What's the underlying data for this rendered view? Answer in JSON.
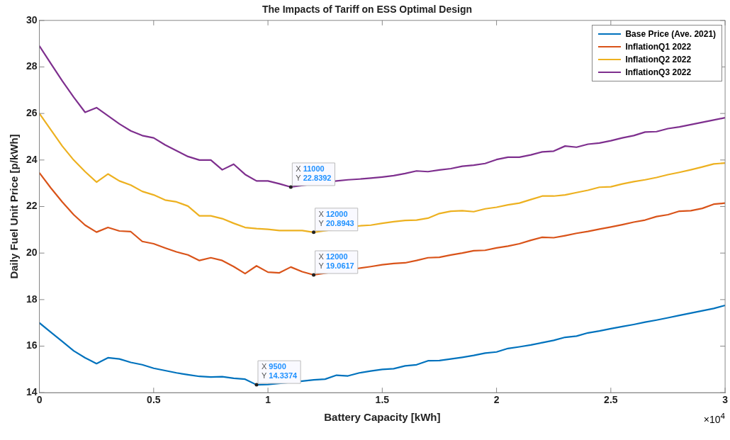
{
  "chart_data": {
    "type": "line",
    "title": "The Impacts of Tariff on ESS Optimal Design",
    "xlabel": "Battery Capacity [kWh]",
    "ylabel": "Daily Fuel Unit Price [p/kWh]",
    "x": [
      0,
      0.05,
      0.1,
      0.15,
      0.2,
      0.25,
      0.3,
      0.35,
      0.4,
      0.45,
      0.5,
      0.55,
      0.6,
      0.65,
      0.7,
      0.75,
      0.8,
      0.85,
      0.9,
      0.95,
      1,
      1.05,
      1.1,
      1.15,
      1.2,
      1.25,
      1.3,
      1.35,
      1.4,
      1.45,
      1.5,
      1.55,
      1.6,
      1.65,
      1.7,
      1.75,
      1.8,
      1.85,
      1.9,
      1.95,
      2,
      2.05,
      2.1,
      2.15,
      2.2,
      2.25,
      2.3,
      2.35,
      2.4,
      2.45,
      2.5,
      2.55,
      2.6,
      2.65,
      2.7,
      2.75,
      2.8,
      2.85,
      2.9,
      2.95,
      3
    ],
    "series": [
      {
        "name": "Base Price (Ave. 2021)",
        "color": "#0072bd",
        "values": [
          17.0,
          16.6,
          16.2,
          15.8,
          15.5,
          15.25,
          15.5,
          15.45,
          15.3,
          15.2,
          15.05,
          14.95,
          14.85,
          14.77,
          14.7,
          14.67,
          14.69,
          14.62,
          14.58,
          14.3374,
          14.35,
          null,
          null,
          14.5,
          14.55,
          14.58,
          14.75,
          14.72,
          14.85,
          14.93,
          15.0,
          15.03,
          15.15,
          15.2,
          15.37,
          15.38,
          15.45,
          15.52,
          15.6,
          15.7,
          15.75,
          15.9,
          15.97,
          16.05,
          16.15,
          16.25,
          16.38,
          16.43,
          16.57,
          16.65,
          16.75,
          16.84,
          16.93,
          17.03,
          17.12,
          17.22,
          17.32,
          17.42,
          17.52,
          17.62,
          17.75
        ]
      },
      {
        "name": "InflationQ1 2022",
        "color": "#d95319",
        "values": [
          23.45,
          22.8,
          22.2,
          21.65,
          21.2,
          20.9,
          21.1,
          20.95,
          20.92,
          20.5,
          20.4,
          20.22,
          20.05,
          19.92,
          19.68,
          19.8,
          19.68,
          19.42,
          19.12,
          19.45,
          19.18,
          19.15,
          19.4,
          19.2,
          19.0617,
          null,
          null,
          null,
          19.35,
          19.42,
          19.5,
          19.55,
          19.58,
          19.68,
          19.8,
          19.82,
          19.92,
          20.0,
          20.1,
          20.12,
          20.22,
          20.3,
          20.4,
          20.55,
          20.68,
          20.66,
          20.75,
          20.85,
          20.93,
          21.03,
          21.12,
          21.22,
          21.33,
          21.42,
          21.57,
          21.65,
          21.8,
          21.82,
          21.92,
          22.1,
          22.15
        ]
      },
      {
        "name": "InflationQ2 2022",
        "color": "#edb120",
        "values": [
          26.0,
          25.3,
          24.6,
          24.0,
          23.5,
          23.05,
          23.4,
          23.1,
          22.92,
          22.65,
          22.5,
          22.28,
          22.2,
          22.02,
          21.6,
          21.6,
          21.48,
          21.28,
          21.1,
          21.05,
          21.02,
          20.97,
          20.97,
          20.97,
          20.8943,
          null,
          null,
          null,
          21.17,
          21.2,
          21.28,
          21.35,
          21.4,
          21.42,
          21.5,
          21.7,
          21.8,
          21.82,
          21.78,
          21.9,
          21.97,
          22.07,
          22.15,
          22.3,
          22.45,
          22.45,
          22.5,
          22.6,
          22.7,
          22.83,
          22.85,
          22.97,
          23.07,
          23.15,
          23.25,
          23.37,
          23.47,
          23.58,
          23.7,
          23.83,
          23.87
        ]
      },
      {
        "name": "InflationQ3 2022",
        "color": "#7e2f8e",
        "values": [
          28.9,
          28.15,
          27.4,
          26.7,
          26.05,
          26.25,
          25.9,
          25.55,
          25.25,
          25.05,
          24.95,
          24.65,
          24.4,
          24.15,
          24.0,
          24.0,
          23.58,
          23.82,
          23.38,
          23.1,
          23.1,
          22.98,
          22.8392,
          null,
          null,
          null,
          23.1,
          23.15,
          23.18,
          23.22,
          23.27,
          23.33,
          23.42,
          23.53,
          23.5,
          23.57,
          23.63,
          23.73,
          23.78,
          23.85,
          24.02,
          24.12,
          24.12,
          24.22,
          24.35,
          24.38,
          24.6,
          24.55,
          24.68,
          24.73,
          24.83,
          24.95,
          25.05,
          25.2,
          25.22,
          25.35,
          25.42,
          25.52,
          25.62,
          25.72,
          25.82
        ]
      }
    ],
    "xlim": [
      0,
      3
    ],
    "xticks": [
      0,
      0.5,
      1,
      1.5,
      2,
      2.5,
      3
    ],
    "ylim": [
      14,
      30
    ],
    "yticks": [
      14,
      16,
      18,
      20,
      22,
      24,
      26,
      28,
      30
    ],
    "annotations": [
      {
        "text": "X 9500\nY 14.3374",
        "x": 0.95,
        "y": 14.3374
      },
      {
        "text": "X 12000\nY 19.0617",
        "x": 1.2,
        "y": 19.0617
      },
      {
        "text": "X 12000\nY 20.8943",
        "x": 1.2,
        "y": 20.8943
      },
      {
        "text": "X 11000\nY 22.8392",
        "x": 1.1,
        "y": 22.8392
      },
      "×10$^{4}$"
    ],
    "grid": false,
    "legend": "top right",
    "marker": "none",
    "line_style": "solid"
  }
}
